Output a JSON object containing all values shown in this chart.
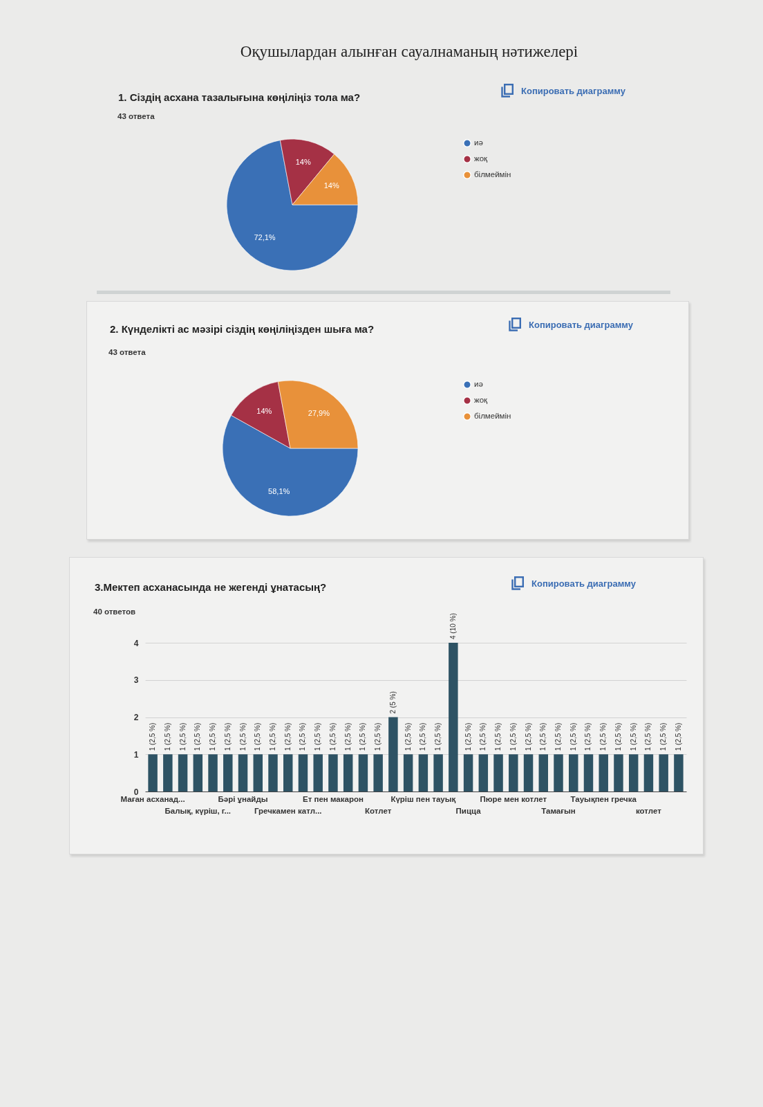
{
  "chart_data": [
    {
      "type": "pie",
      "title": "Оқушылардан алынған сауалнаманың нәтижелері",
      "subtitle": "1. Сіздің асхана тазалығына көңіліңіз тола ма?",
      "annotations": [
        "43 ответа",
        "Копировать диаграмму"
      ],
      "categories": [
        "иә",
        "жоқ",
        "білмеймін"
      ],
      "values": [
        72.1,
        14,
        14
      ],
      "colors": [
        "#3a70b6",
        "#a53145",
        "#e8913a"
      ],
      "value_labels": [
        "72,1%",
        "14%",
        "14%"
      ],
      "legend": "right"
    },
    {
      "type": "pie",
      "title": "2. Күнделікті ас мәзірі сіздің көңіліңізден шыға ма?",
      "subtitle": "43 ответа",
      "annotations": [
        "Копировать диаграмму"
      ],
      "categories": [
        "иә",
        "жоқ",
        "білмеймін"
      ],
      "values": [
        58.1,
        14,
        27.9
      ],
      "colors": [
        "#3a70b6",
        "#a53145",
        "#e8913a"
      ],
      "value_labels": [
        "58,1%",
        "14%",
        "27,9%"
      ],
      "legend": "right"
    },
    {
      "type": "bar",
      "title": "3.Мектеп асханасында не жегенді ұнатасың?",
      "subtitle": "40 ответов",
      "annotations": [
        "Копировать диаграмму"
      ],
      "categories": [
        "Маған асханад...",
        null,
        null,
        "Балық, күріш, г...",
        null,
        null,
        "Бәрі ұнайды",
        null,
        null,
        "Гречкамен катл...",
        null,
        null,
        "Ет пен макарон",
        null,
        null,
        "Котлет",
        null,
        null,
        "Күріш пен тауық",
        null,
        null,
        "Пицца",
        null,
        null,
        "Пюре мен котлет",
        null,
        null,
        "Тамағын",
        null,
        null,
        "Тауықпен гречка",
        null,
        null,
        "котлет",
        null,
        null
      ],
      "values": [
        1,
        1,
        1,
        1,
        1,
        1,
        1,
        1,
        1,
        1,
        1,
        1,
        1,
        1,
        1,
        1,
        2,
        1,
        1,
        1,
        4,
        1,
        1,
        1,
        1,
        1,
        1,
        1,
        1,
        1,
        1,
        1,
        1,
        1,
        1,
        1
      ],
      "value_labels": [
        "1 (2,5 %)",
        "1 (2,5 %)",
        "1 (2,5 %)",
        "1 (2,5 %)",
        "1 (2,5 %)",
        "1 (2,5 %)",
        "1 (2,5 %)",
        "1 (2,5 %)",
        "1 (2,5 %)",
        "1 (2,5 %)",
        "1 (2,5 %)",
        "1 (2,5 %)",
        "1 (2,5 %)",
        "1 (2,5 %)",
        "1 (2,5 %)",
        "1 (2,5 %)",
        "2 (5 %)",
        "1 (2,5 %)",
        "1 (2,5 %)",
        "1 (2,5 %)",
        "4 (10 %)",
        "1 (2,5 %)",
        "1 (2,5 %)",
        "1 (2,5 %)",
        "1 (2,5 %)",
        "1 (2,5 %)",
        "1 (2,5 %)",
        "1 (2,5 %)",
        "1 (2,5 %)",
        "1 (2,5 %)",
        "1 (2,5 %)",
        "1 (2,5 %)",
        "1 (2,5 %)",
        "1 (2,5 %)",
        "1 (2,5 %)",
        "1 (2,5 %)"
      ],
      "color": "#2e5364",
      "ylim": [
        0,
        4
      ],
      "yticks": [
        0,
        1,
        2,
        3,
        4
      ],
      "grid": "y"
    }
  ]
}
